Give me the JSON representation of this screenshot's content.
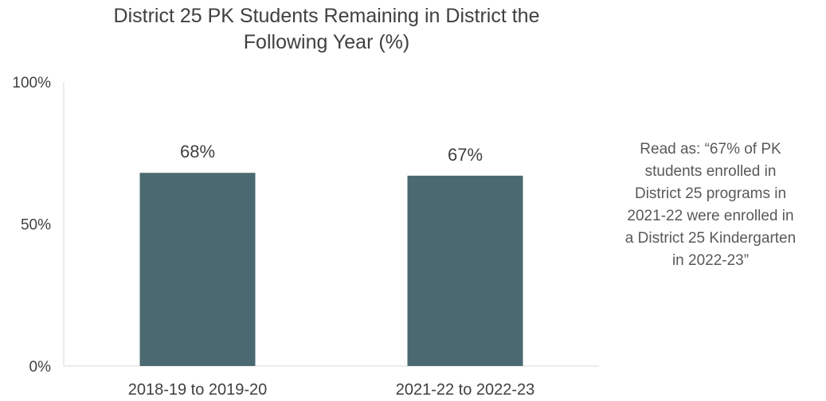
{
  "chart_data": {
    "type": "bar",
    "title_lines": [
      "District 25 PK Students Remaining in District the",
      "Following Year (%)"
    ],
    "categories": [
      "2018-19 to 2019-20",
      "2021-22 to 2022-23"
    ],
    "values": [
      68,
      67
    ],
    "data_labels": [
      "68%",
      "67%"
    ],
    "ylim": [
      0,
      100
    ],
    "yticks": [
      0,
      50,
      100
    ],
    "ytick_labels": [
      "0%",
      "50%",
      "100%"
    ],
    "xlabel": "",
    "ylabel": "",
    "grid": false,
    "legend": "none",
    "bar_color": "#4a6970"
  },
  "annotation": {
    "lines": [
      "Read as: “67% of PK",
      "students enrolled in",
      "District 25 programs in",
      "2021-22 were enrolled in",
      "a District 25 Kindergarten",
      "in 2022-23”"
    ]
  }
}
